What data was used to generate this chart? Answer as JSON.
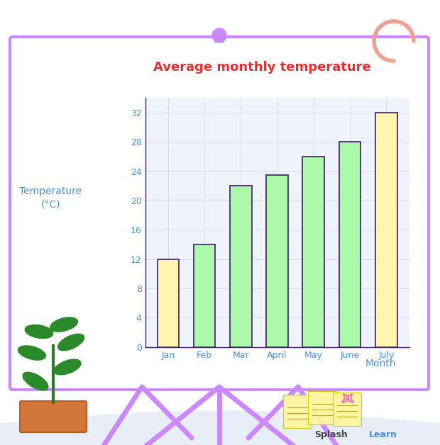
{
  "categories": [
    "Jan",
    "Feb",
    "Mar",
    "April",
    "May",
    "June",
    "July"
  ],
  "values": [
    12,
    14,
    22,
    23.5,
    26,
    28,
    32
  ],
  "bar_colors": [
    "#FFF5B0",
    "#ADFAAD",
    "#ADFAAD",
    "#ADFAAD",
    "#ADFAAD",
    "#ADFAAD",
    "#FFF5B0"
  ],
  "bar_edge_color": "#3d1a6e",
  "title": "Average monthly temperature",
  "title_color": "#e63030",
  "xlabel": "Month",
  "ylabel": "Temperature\n(°C)",
  "xlabel_color": "#4a90d9",
  "ylabel_color": "#4a90d9",
  "tick_color": "#4a90d9",
  "tick_label_color": "#4a90d9",
  "ylim": [
    0,
    34
  ],
  "yticks": [
    0,
    4,
    8,
    12,
    16,
    20,
    24,
    28,
    32
  ],
  "grid_color": "#d0d8f0",
  "chart_bg_color": "#f0f4ff",
  "board_bg_color": "#ffffff",
  "board_border_color": "#cc88ff",
  "title_fontsize": 13,
  "axis_label_fontsize": 10,
  "tick_fontsize": 9,
  "fig_bg_color": "#ffffff"
}
